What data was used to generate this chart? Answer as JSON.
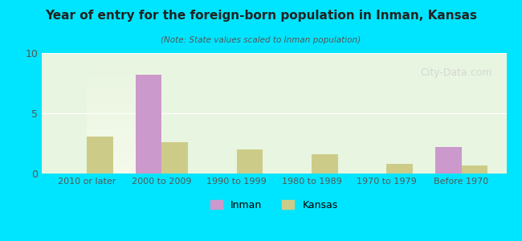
{
  "title": "Year of entry for the foreign-born population in Inman, Kansas",
  "subtitle": "(Note: State values scaled to Inman population)",
  "categories": [
    "2010 or later",
    "2000 to 2009",
    "1990 to 1999",
    "1980 to 1989",
    "1970 to 1979",
    "Before 1970"
  ],
  "inman_values": [
    0,
    8.2,
    0,
    0,
    0,
    2.2
  ],
  "kansas_values": [
    3.1,
    2.6,
    2.0,
    1.6,
    0.8,
    0.7
  ],
  "inman_color": "#cc99cc",
  "kansas_color": "#cccc88",
  "background_outer": "#00e5ff",
  "background_inner_top": "#e8f5e0",
  "background_inner_bottom": "#f5f5e8",
  "ylim": [
    0,
    10
  ],
  "yticks": [
    0,
    5,
    10
  ],
  "bar_width": 0.35,
  "watermark": "City-Data.com"
}
